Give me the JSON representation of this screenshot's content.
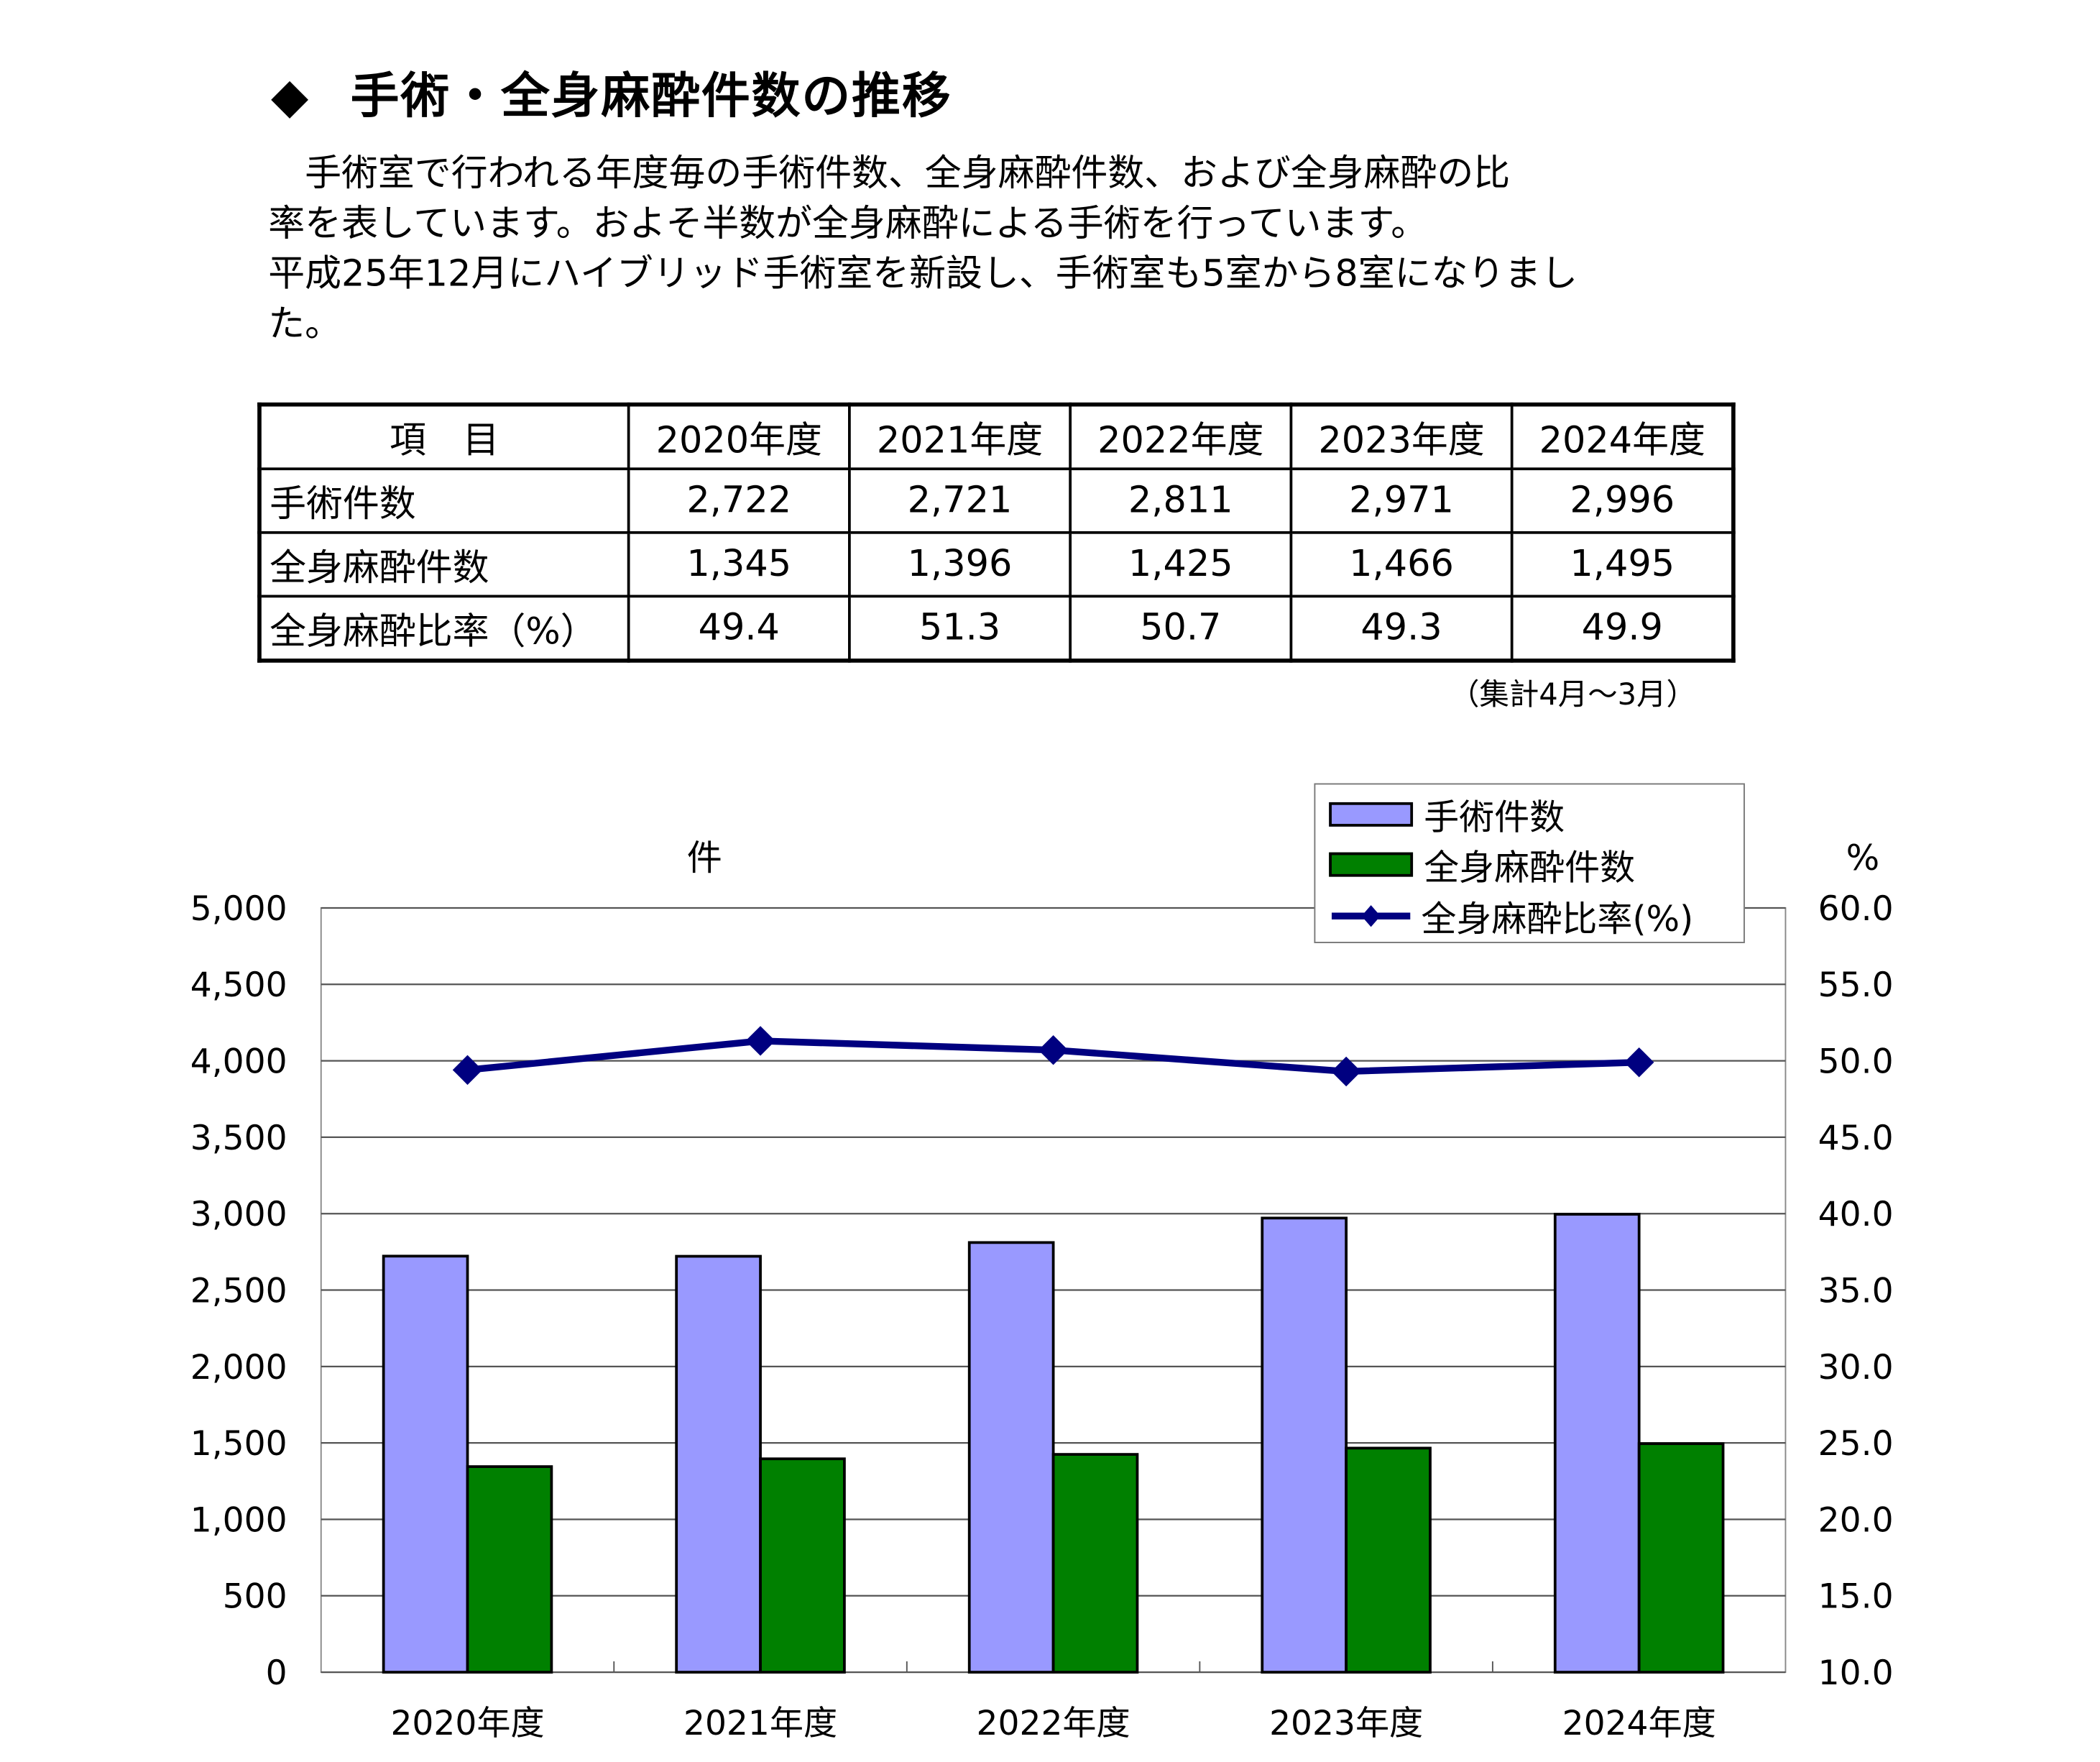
{
  "heading": {
    "bullet_icon": "diamond",
    "title": "手術・全身麻酔件数の推移"
  },
  "description": {
    "lines": [
      "　手術室で行われる年度毎の手術件数、全身麻酔件数、および全身麻酔の比",
      "率を表しています。およそ半数が全身麻酔による手術を行っています。",
      "平成25年12月にハイブリッド手術室を新設し、手術室も5室から8室になりまし",
      "た。"
    ]
  },
  "table": {
    "header": [
      "項　目",
      "2020年度",
      "2021年度",
      "2022年度",
      "2023年度",
      "2024年度"
    ],
    "rows": [
      [
        "手術件数",
        "2,722",
        "2,721",
        "2,811",
        "2,971",
        "2,996"
      ],
      [
        "全身麻酔件数",
        "1,345",
        "1,396",
        "1,425",
        "1,466",
        "1,495"
      ],
      [
        "全身麻酔比率（%）",
        "49.4",
        "51.3",
        "50.7",
        "49.3",
        "49.9"
      ]
    ],
    "note": "（集計4月～3月）"
  },
  "chart_data": {
    "type": "bar",
    "title": "",
    "categories": [
      "2020年度",
      "2021年度",
      "2022年度",
      "2023年度",
      "2024年度"
    ],
    "series": [
      {
        "name": "手術件数",
        "kind": "bar",
        "axis": "left",
        "color": "#9999FF",
        "values": [
          2722,
          2721,
          2811,
          2971,
          2996
        ]
      },
      {
        "name": "全身麻酔件数",
        "kind": "bar",
        "axis": "left",
        "color": "#008000",
        "values": [
          1345,
          1396,
          1425,
          1466,
          1495
        ]
      },
      {
        "name": "全身麻酔比率(%)",
        "kind": "line",
        "marker": "diamond",
        "axis": "right",
        "color": "#000080",
        "values": [
          49.4,
          51.3,
          50.7,
          49.3,
          49.9
        ]
      }
    ],
    "xlabel": "",
    "ylabel": "件",
    "ylabel_right": "%",
    "ylim": [
      0,
      5000
    ],
    "ylim_right": [
      10.0,
      60.0
    ],
    "yticks": [
      "0",
      "500",
      "1,000",
      "1,500",
      "2,000",
      "2,500",
      "3,000",
      "3,500",
      "4,000",
      "4,500",
      "5,000"
    ],
    "yticks_right": [
      "10.0",
      "15.0",
      "20.0",
      "25.0",
      "30.0",
      "35.0",
      "40.0",
      "45.0",
      "50.0",
      "55.0",
      "60.0"
    ],
    "grid": true,
    "legend_position": "top-right"
  }
}
